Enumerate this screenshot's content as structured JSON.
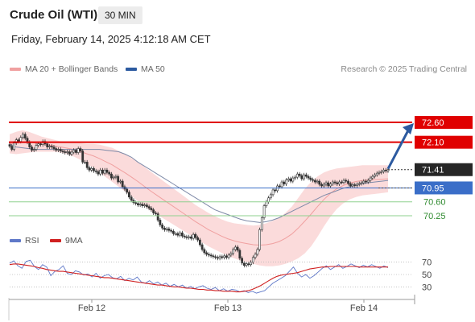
{
  "header": {
    "instrument": "Crude Oil (WTI)",
    "timeframe": "30 MIN",
    "datetime": "Friday, February 14, 2025 4:12:18 AM CET"
  },
  "legend": {
    "ma20_bb": "MA 20 + Bollinger Bands",
    "ma50": "MA 50",
    "credit": "Research © 2025 Trading Central",
    "rsi": "RSI",
    "rsi_ma": "9MA"
  },
  "colors": {
    "resistance": "#e00000",
    "pivot": "#3a6ec8",
    "support": "#8fd08f",
    "bollinger": "#f9c8c8",
    "ma20": "#f0a0a0",
    "ma50": "#7f8aa8",
    "arrow": "#2c5aa0",
    "rsi_line": "#5f78c8",
    "rsi_ma": "#d02020",
    "candle": "#333333"
  },
  "chart_data": [
    {
      "type": "candlestick",
      "title": "Crude Oil (WTI)",
      "timeframe": "30 MIN",
      "x_ticks": [
        "Feb 12",
        "Feb 13",
        "Feb 14"
      ],
      "ylim": [
        69.7,
        72.9
      ],
      "levels": [
        {
          "value": 72.6,
          "label": "72.60",
          "kind": "resistance"
        },
        {
          "value": 72.1,
          "label": "72.10",
          "kind": "resistance"
        },
        {
          "value": 71.41,
          "label": "71.41",
          "kind": "last_price"
        },
        {
          "value": 70.95,
          "label": "70.95",
          "kind": "pivot"
        },
        {
          "value": 70.6,
          "label": "70.60",
          "kind": "support"
        },
        {
          "value": 70.25,
          "label": "70.25",
          "kind": "support"
        }
      ],
      "target_arrow": {
        "from": 71.41,
        "to": 72.6
      },
      "close": [
        72.0,
        71.92,
        72.08,
        72.16,
        72.12,
        72.22,
        72.3,
        72.2,
        72.1,
        71.98,
        71.9,
        71.92,
        72.02,
        72.06,
        72.04,
        72.12,
        72.06,
        71.98,
        72.0,
        71.98,
        71.94,
        71.9,
        71.92,
        71.88,
        71.86,
        71.84,
        71.86,
        71.8,
        71.85,
        71.9,
        71.84,
        71.94,
        71.88,
        71.6,
        71.6,
        71.46,
        71.4,
        71.44,
        71.38,
        71.36,
        71.3,
        71.4,
        71.32,
        71.4,
        71.34,
        71.3,
        71.2,
        71.22,
        71.24,
        71.1,
        71.12,
        70.98,
        70.92,
        70.84,
        70.72,
        70.64,
        70.58,
        70.56,
        70.52,
        70.54,
        70.5,
        70.52,
        70.48,
        70.44,
        70.4,
        70.32,
        70.3,
        70.14,
        70.02,
        69.94,
        69.9,
        69.92,
        69.88,
        69.86,
        69.8,
        69.8,
        69.76,
        69.82,
        69.74,
        69.72,
        69.7,
        69.72,
        69.68,
        69.78,
        69.7,
        69.64,
        69.52,
        69.4,
        69.32,
        69.28,
        69.26,
        69.24,
        69.22,
        69.2,
        69.18,
        69.22,
        69.2,
        69.24,
        69.2,
        69.26,
        69.3,
        69.4,
        69.46,
        69.38,
        69.18,
        69.06,
        69.0,
        69.04,
        69.02,
        69.08,
        69.2,
        69.28,
        69.4,
        69.9,
        70.2,
        70.5,
        70.6,
        70.7,
        70.78,
        70.9,
        70.88,
        71.0,
        70.98,
        71.1,
        71.05,
        71.15,
        71.18,
        71.12,
        71.2,
        71.22,
        71.3,
        71.26,
        71.18,
        71.28,
        71.24,
        71.2,
        71.16,
        71.14,
        71.1,
        71.12,
        71.04,
        71.0,
        71.04,
        71.08,
        71.0,
        71.05,
        71.1,
        71.08,
        71.05,
        71.1,
        71.09,
        71.14,
        71.12,
        71.06,
        71.0,
        71.03,
        71.01,
        71.04,
        71.06,
        71.08,
        71.12,
        71.1,
        71.14,
        71.2,
        71.24,
        71.28,
        71.32,
        71.34,
        71.36,
        71.4,
        71.38,
        71.41
      ],
      "ma50": [
        72.05,
        71.98,
        71.96,
        71.94,
        71.92,
        71.92,
        71.92,
        71.92,
        71.92,
        71.92,
        71.92,
        71.92,
        71.92,
        71.92,
        71.92,
        71.9,
        71.88,
        71.86,
        71.8,
        71.72,
        71.6,
        71.5,
        71.4,
        71.3,
        71.2,
        71.1,
        71.0,
        70.9,
        70.8,
        70.7,
        70.6,
        70.5,
        70.4,
        70.34,
        70.28,
        70.22,
        70.16,
        70.12,
        70.1,
        70.08,
        70.1,
        70.14,
        70.2,
        70.28,
        70.36,
        70.44,
        70.52,
        70.6,
        70.68,
        70.76,
        70.82,
        70.88,
        70.94,
        70.98,
        71.02,
        71.06,
        71.08,
        71.1,
        71.12,
        71.14
      ],
      "bb_upper": [
        72.3,
        72.36,
        72.4,
        72.36,
        72.3,
        72.24,
        72.2,
        72.16,
        72.12,
        72.1,
        72.1,
        72.08,
        72.06,
        72.06,
        72.04,
        72.0,
        71.96,
        71.88,
        71.8,
        71.7,
        71.6,
        71.48,
        71.36,
        71.24,
        71.12,
        71.0,
        70.88,
        70.76,
        70.64,
        70.52,
        70.42,
        70.32,
        70.24,
        70.16,
        70.1,
        70.06,
        70.04,
        70.02,
        70.0,
        70.02,
        70.06,
        70.12,
        70.2,
        70.32,
        70.48,
        70.7,
        70.92,
        71.1,
        71.24,
        71.34,
        71.4,
        71.44,
        71.46,
        71.48,
        71.5,
        71.52,
        71.52,
        71.52,
        71.52,
        71.52
      ],
      "bb_lower": [
        71.82,
        71.8,
        71.82,
        71.84,
        71.86,
        71.86,
        71.86,
        71.86,
        71.84,
        71.8,
        71.74,
        71.66,
        71.56,
        71.46,
        71.34,
        71.22,
        71.1,
        70.98,
        70.86,
        70.74,
        70.62,
        70.5,
        70.38,
        70.28,
        70.18,
        70.08,
        69.98,
        69.88,
        69.78,
        69.68,
        69.58,
        69.48,
        69.4,
        69.32,
        69.24,
        69.18,
        69.12,
        69.08,
        69.04,
        69.0,
        68.98,
        68.98,
        69.0,
        69.04,
        69.1,
        69.18,
        69.3,
        69.48,
        69.72,
        69.98,
        70.22,
        70.42,
        70.56,
        70.66,
        70.72,
        70.76,
        70.78,
        70.8,
        70.82,
        70.84
      ]
    },
    {
      "type": "line",
      "title": "RSI",
      "y_ticks": [
        30,
        50,
        70
      ],
      "ylim": [
        15,
        85
      ],
      "series": [
        {
          "name": "RSI",
          "values": [
            68,
            72,
            64,
            60,
            71,
            73,
            63,
            58,
            66,
            62,
            48,
            55,
            58,
            64,
            52,
            50,
            56,
            54,
            49,
            51,
            46,
            52,
            44,
            48,
            50,
            45,
            43,
            47,
            40,
            44,
            41,
            46,
            38,
            36,
            40,
            35,
            38,
            33,
            36,
            31,
            34,
            30,
            33,
            28,
            31,
            27,
            30,
            32,
            28,
            26,
            29,
            24,
            27,
            23,
            26,
            25,
            22,
            24,
            21,
            23,
            20,
            22,
            24,
            30,
            36,
            40,
            44,
            48,
            55,
            62,
            52,
            46,
            50,
            44,
            48,
            54,
            60,
            64,
            58,
            62,
            66,
            60,
            63,
            67,
            64,
            61,
            65,
            62,
            66,
            63,
            60,
            64,
            61
          ]
        },
        {
          "name": "9MA",
          "values": [
            66,
            67,
            67,
            66,
            65,
            64,
            63,
            61,
            60,
            58,
            57,
            56,
            55,
            55,
            54,
            53,
            52,
            51,
            50,
            49,
            48,
            47,
            46,
            45,
            45,
            44,
            43,
            42,
            41,
            40,
            39,
            38,
            37,
            36,
            35,
            34,
            33,
            33,
            32,
            31,
            30,
            30,
            29,
            28,
            28,
            27,
            26,
            26,
            25,
            25,
            24,
            24,
            23,
            23,
            23,
            22,
            22,
            23,
            24,
            26,
            29,
            32,
            36,
            40,
            44,
            47,
            49,
            50,
            51,
            52,
            53,
            55,
            57,
            59,
            60,
            61,
            62,
            62,
            63,
            63,
            63,
            63,
            63,
            63,
            63,
            62,
            62,
            62,
            62,
            62,
            62,
            62,
            62
          ]
        }
      ]
    }
  ]
}
